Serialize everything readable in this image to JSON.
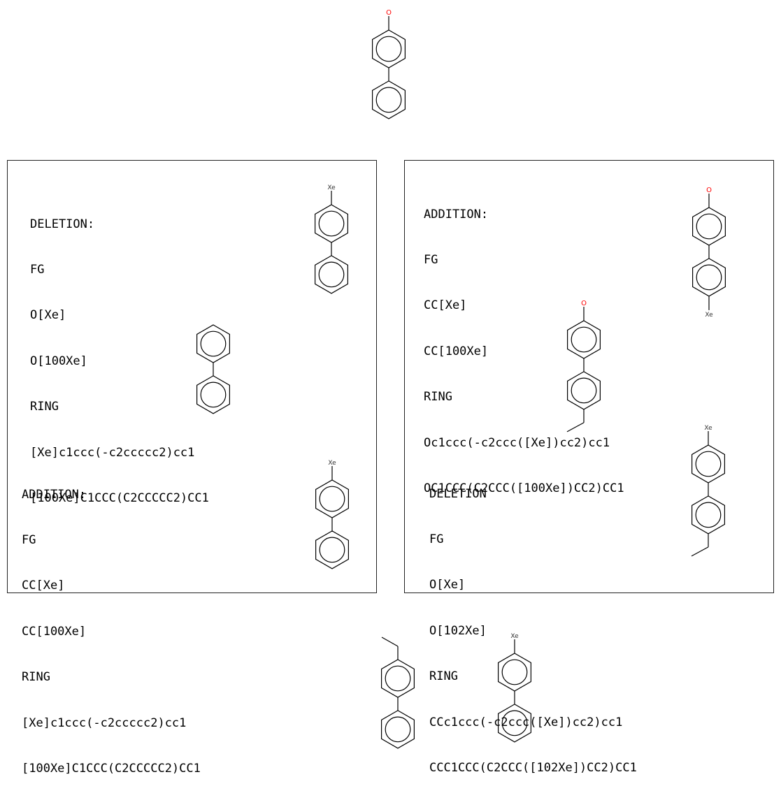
{
  "atom_labels": {
    "oxygen": "O",
    "xenon": "Xe"
  },
  "colors": {
    "oxygen": "#ff0000",
    "xenon": "#333333",
    "bond": "#000000"
  },
  "left_panel": {
    "deletion": {
      "lines": [
        "DELETION:",
        "FG",
        "O[Xe]",
        "O[100Xe]",
        "RING",
        "[Xe]c1ccc(-c2ccccc2)cc1",
        "[100Xe]C1CCC(C2CCCCC2)CC1"
      ]
    },
    "addition": {
      "lines": [
        "ADDITION:",
        "FG",
        "CC[Xe]",
        "CC[100Xe]",
        "RING",
        "[Xe]c1ccc(-c2ccccc2)cc1",
        "[100Xe]C1CCC(C2CCCCC2)CC1"
      ]
    }
  },
  "right_panel": {
    "addition": {
      "lines": [
        "ADDITION:",
        "FG",
        "CC[Xe]",
        "CC[100Xe]",
        "RING",
        "Oc1ccc(-c2ccc([Xe])cc2)cc1",
        "OC1CCC(C2CCC([100Xe])CC2)CC1"
      ]
    },
    "deletion": {
      "lines": [
        "DELETION",
        "FG",
        "O[Xe]",
        "O[102Xe]",
        "RING",
        "CCc1ccc(-c2ccc([Xe])cc2)cc1",
        "CCC1CCC(C2CCC([102Xe])CC2)CC1"
      ]
    }
  }
}
